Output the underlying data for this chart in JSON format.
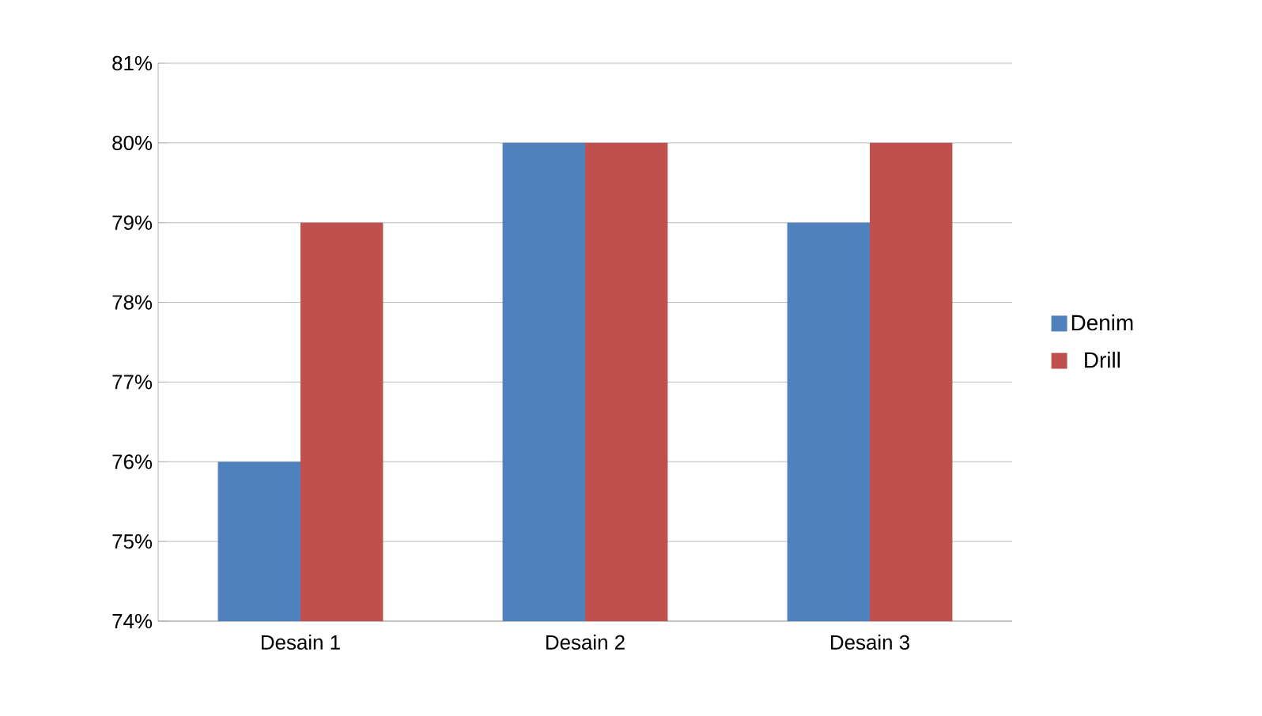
{
  "chart_data": {
    "type": "bar",
    "categories": [
      "Desain 1",
      "Desain 2",
      "Desain 3"
    ],
    "series": [
      {
        "name": "Denim",
        "color": "#4f81bd",
        "values": [
          76,
          80,
          79
        ]
      },
      {
        "name": "Drill",
        "color": "#c0504d",
        "values": [
          79,
          80,
          80
        ]
      }
    ],
    "ylim": [
      74,
      81
    ],
    "yticks": [
      {
        "value": 74,
        "label": "74%"
      },
      {
        "value": 75,
        "label": "75%"
      },
      {
        "value": 76,
        "label": "76%"
      },
      {
        "value": 77,
        "label": "77%"
      },
      {
        "value": 78,
        "label": "78%"
      },
      {
        "value": 79,
        "label": "79%"
      },
      {
        "value": 80,
        "label": "80%"
      },
      {
        "value": 81,
        "label": "81%"
      }
    ],
    "grid": "y",
    "legend": "right"
  }
}
